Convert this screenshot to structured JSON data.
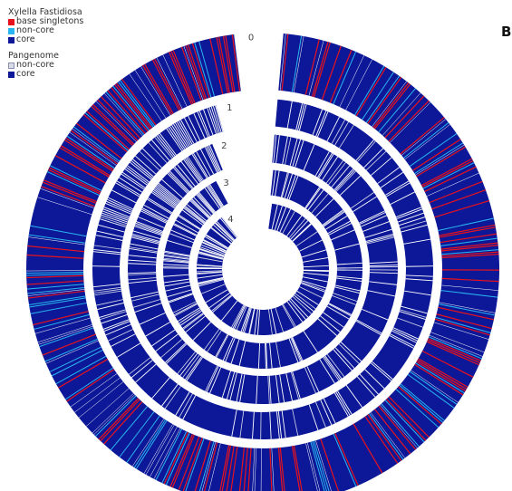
{
  "legend": {
    "species": {
      "title": "Xylella Fastidiosa",
      "items": [
        {
          "label": "base singletons",
          "color": "#e8121c"
        },
        {
          "label": "non-core",
          "color": "#29b6f0"
        },
        {
          "label": "core",
          "color": "#0c1898"
        }
      ]
    },
    "pangenome": {
      "title": "Pangenome",
      "items": [
        {
          "label": "non-core",
          "color": "#d9dbe8"
        },
        {
          "label": "core",
          "color": "#0c1898"
        }
      ]
    }
  },
  "panel_letter": "B",
  "rings": [
    {
      "label": "0",
      "scheme": "species",
      "core_fraction": 0.78,
      "singleton_fraction": 0.13,
      "noncore_fraction": 0.09
    },
    {
      "label": "1",
      "scheme": "pangenome",
      "core_fraction": 0.82,
      "noncore_fraction": 0.18
    },
    {
      "label": "2",
      "scheme": "pangenome",
      "core_fraction": 0.85,
      "noncore_fraction": 0.15
    },
    {
      "label": "3",
      "scheme": "pangenome",
      "core_fraction": 0.87,
      "noncore_fraction": 0.13
    },
    {
      "label": "4",
      "scheme": "pangenome",
      "core_fraction": 0.9,
      "noncore_fraction": 0.1
    }
  ]
}
